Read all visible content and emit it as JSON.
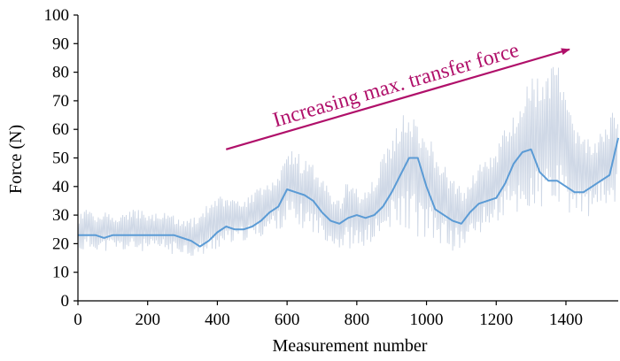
{
  "chart_data": {
    "type": "line",
    "title": "",
    "xlabel": "Measurement number",
    "ylabel": "Force (N)",
    "xlim": [
      0,
      1550
    ],
    "ylim": [
      0,
      100
    ],
    "x_ticks": [
      0,
      200,
      400,
      600,
      800,
      1000,
      1200,
      1400
    ],
    "y_ticks": [
      0,
      10,
      20,
      30,
      40,
      50,
      60,
      70,
      80,
      90,
      100
    ],
    "grid": false,
    "legend": "none",
    "annotation": {
      "text": "Increasing max. transfer force",
      "arrow_from": [
        425,
        53
      ],
      "arrow_to": [
        1410,
        88
      ]
    },
    "series": [
      {
        "style": "raw",
        "color": "#cfd8e6",
        "x": [
          0,
          25,
          50,
          75,
          100,
          125,
          150,
          175,
          200,
          225,
          250,
          275,
          300,
          325,
          350,
          375,
          400,
          425,
          450,
          475,
          500,
          525,
          550,
          575,
          600,
          625,
          650,
          675,
          700,
          725,
          750,
          775,
          800,
          825,
          850,
          875,
          900,
          925,
          950,
          975,
          1000,
          1025,
          1050,
          1075,
          1100,
          1125,
          1150,
          1175,
          1200,
          1225,
          1250,
          1275,
          1300,
          1325,
          1350,
          1375,
          1400,
          1425,
          1450,
          1475,
          1500,
          1525,
          1550
        ],
        "min": [
          17,
          17,
          18,
          17,
          18,
          17,
          17,
          17,
          17,
          17,
          17,
          16,
          17,
          15,
          15,
          16,
          18,
          19,
          20,
          21,
          21,
          22,
          24,
          25,
          26,
          25,
          25,
          24,
          22,
          20,
          18,
          18,
          18,
          19,
          20,
          21,
          24,
          25,
          25,
          22,
          21,
          20,
          19,
          17,
          18,
          20,
          23,
          25,
          27,
          28,
          29,
          29,
          30,
          30,
          32,
          30,
          30,
          30,
          29,
          30,
          32,
          33,
          35
        ],
        "max": [
          30,
          34,
          30,
          31,
          30,
          31,
          32,
          32,
          30,
          31,
          31,
          30,
          29,
          29,
          31,
          36,
          37,
          36,
          35,
          36,
          39,
          40,
          43,
          44,
          55,
          52,
          50,
          47,
          42,
          38,
          36,
          44,
          38,
          38,
          45,
          52,
          58,
          65,
          68,
          65,
          60,
          50,
          48,
          42,
          40,
          43,
          48,
          50,
          55,
          62,
          68,
          75,
          79,
          78,
          82,
          88,
          70,
          62,
          58,
          56,
          60,
          65,
          70
        ]
      },
      {
        "style": "moving-average",
        "color": "#5b9bd5",
        "x": [
          0,
          25,
          50,
          75,
          100,
          125,
          150,
          175,
          200,
          225,
          250,
          275,
          300,
          325,
          350,
          375,
          400,
          425,
          450,
          475,
          500,
          525,
          550,
          575,
          600,
          625,
          650,
          675,
          700,
          725,
          750,
          775,
          800,
          825,
          850,
          875,
          900,
          925,
          950,
          975,
          1000,
          1025,
          1050,
          1075,
          1100,
          1125,
          1150,
          1175,
          1200,
          1225,
          1250,
          1275,
          1300,
          1325,
          1350,
          1375,
          1400,
          1425,
          1450,
          1475,
          1500,
          1525,
          1550
        ],
        "y": [
          23,
          23,
          23,
          22,
          23,
          23,
          23,
          23,
          23,
          23,
          23,
          23,
          22,
          21,
          19,
          21,
          24,
          26,
          25,
          25,
          26,
          28,
          31,
          33,
          39,
          38,
          37,
          35,
          31,
          28,
          27,
          29,
          30,
          29,
          30,
          33,
          38,
          44,
          50,
          50,
          40,
          32,
          30,
          28,
          27,
          31,
          34,
          35,
          36,
          41,
          48,
          52,
          53,
          45,
          42,
          42,
          40,
          38,
          38,
          40,
          42,
          44,
          57
        ]
      }
    ]
  }
}
